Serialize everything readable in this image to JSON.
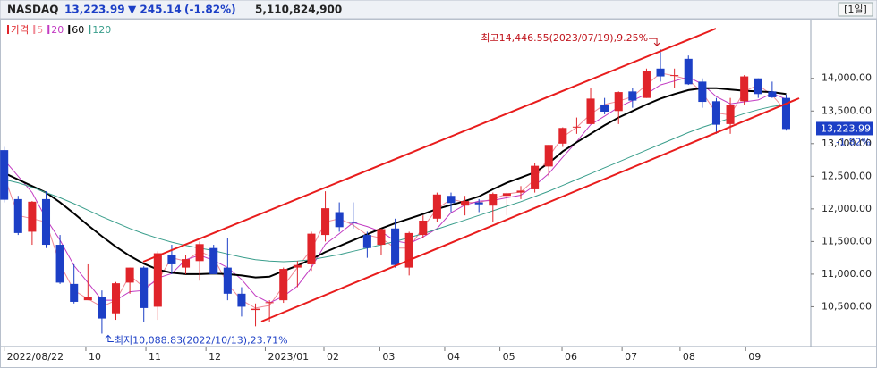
{
  "header": {
    "symbol": "NASDAQ",
    "price": "13,223.99",
    "change": "▼ 245.14",
    "change_pct": "(-1.82%)",
    "volume": "5,110,824,900",
    "period": "[1일]"
  },
  "chart_data": {
    "type": "candlestick",
    "change_label": "-1.82%",
    "high_annotation": "최고14,446.55(2023/07/19),9.25%",
    "low_annotation": "최저10,088.83(2022/10/13),23.71%",
    "high_index": 47,
    "low_index": 7,
    "xlim": [
      -0.3,
      57.7
    ],
    "xticks": [
      {
        "value": 0,
        "label": "2022/08/22"
      },
      {
        "value": 5.85,
        "label": "10"
      },
      {
        "value": 10.15,
        "label": "11"
      },
      {
        "value": 14.45,
        "label": "12"
      },
      {
        "value": 18.7,
        "label": "2023/01"
      },
      {
        "value": 22.9,
        "label": "02"
      },
      {
        "value": 26.9,
        "label": "03"
      },
      {
        "value": 31.55,
        "label": "04"
      },
      {
        "value": 35.5,
        "label": "05"
      },
      {
        "value": 39.95,
        "label": "06"
      },
      {
        "value": 44.25,
        "label": "07"
      },
      {
        "value": 48.4,
        "label": "08"
      },
      {
        "value": 53.1,
        "label": "09"
      }
    ],
    "ylim": [
      9890,
      14900
    ],
    "yticks": [
      {
        "value": 10500,
        "label": "10,500.00"
      },
      {
        "value": 11000,
        "label": "11,000.00"
      },
      {
        "value": 11500,
        "label": "11,500.00"
      },
      {
        "value": 12000,
        "label": "12,000.00"
      },
      {
        "value": 12500,
        "label": "12,500.00"
      },
      {
        "value": 13000,
        "label": "13,000.00"
      },
      {
        "value": 13500,
        "label": "13,500.00"
      },
      {
        "value": 14000,
        "label": "14,000.00"
      }
    ],
    "grid": false,
    "series": [
      {
        "name": "가격",
        "type": "candlestick",
        "color_up": "#e0242a",
        "color_down": "#1c3fc6",
        "open": [
          12900,
          12150,
          11650,
          12150,
          11450,
          10850,
          10600,
          10650,
          10400,
          10870,
          11100,
          10500,
          11300,
          11100,
          11200,
          11400,
          11100,
          10700,
          10450,
          10560,
          10600,
          11100,
          11150,
          11600,
          11950,
          11800,
          11600,
          11450,
          11700,
          11100,
          11600,
          11850,
          12200,
          12050,
          12100,
          12050,
          12200,
          12250,
          12300,
          12650,
          13000,
          13250,
          13300,
          13600,
          13500,
          13800,
          13700,
          14150,
          14050,
          14300,
          13950,
          13650,
          13300,
          13650,
          14000,
          13800,
          13700
        ],
        "high": [
          12950,
          12200,
          12120,
          12270,
          11600,
          11150,
          11150,
          10750,
          10880,
          11100,
          11120,
          11350,
          11450,
          11300,
          11500,
          11450,
          11550,
          10800,
          10550,
          10600,
          11100,
          11200,
          11650,
          12270,
          12100,
          12100,
          11650,
          11700,
          11850,
          11650,
          11900,
          12250,
          12250,
          12200,
          12150,
          12250,
          12250,
          12350,
          12700,
          12980,
          13250,
          13400,
          13850,
          13700,
          13800,
          13850,
          14150,
          14446.55,
          14150,
          14350,
          14000,
          13700,
          13700,
          14050,
          14000,
          13950,
          13750
        ],
        "low": [
          12100,
          11600,
          11450,
          11400,
          10850,
          10550,
          10600,
          10088.83,
          10300,
          10700,
          10260,
          10300,
          11000,
          11000,
          10900,
          11000,
          10600,
          10350,
          10200,
          10260,
          10560,
          10800,
          11050,
          11500,
          11650,
          11700,
          11250,
          11300,
          11100,
          10980,
          11550,
          11800,
          11950,
          11900,
          11950,
          11800,
          11900,
          12150,
          12250,
          12500,
          12950,
          13150,
          13300,
          13450,
          13300,
          13550,
          13700,
          13950,
          13850,
          13900,
          13550,
          13150,
          13150,
          13600,
          13700,
          13700,
          13200
        ],
        "close": [
          12140,
          11630,
          12110,
          11450,
          10870,
          10575,
          10650,
          10320,
          10860,
          11100,
          10480,
          11320,
          11150,
          11230,
          11460,
          11000,
          10700,
          10500,
          10470,
          10570,
          11080,
          11140,
          11620,
          12010,
          11720,
          11790,
          11400,
          11690,
          11140,
          11630,
          11820,
          12220,
          12090,
          12120,
          12070,
          12230,
          12240,
          12280,
          12660,
          12980,
          13240,
          13260,
          13690,
          13490,
          13790,
          13660,
          14110,
          14030,
          14050,
          13910,
          13640,
          13290,
          13590,
          14030,
          13760,
          13710,
          13223.99
        ]
      },
      {
        "name": "5",
        "type": "line",
        "color": "#f08a96",
        "values": [
          12500,
          11900,
          11850,
          11800,
          11150,
          10750,
          10620,
          10500,
          10600,
          10980,
          10800,
          10900,
          11250,
          11200,
          11350,
          11250,
          10850,
          10600,
          10480,
          10520,
          10820,
          11100,
          11380,
          11800,
          11850,
          11750,
          11600,
          11550,
          11400,
          11400,
          11720,
          12000,
          12150,
          12100,
          12100,
          12150,
          12230,
          12260,
          12450,
          12800,
          13100,
          13250,
          13450,
          13600,
          13650,
          13720,
          13900,
          14080,
          14040,
          13980,
          13780,
          13470,
          13440,
          13800,
          13900,
          13740,
          13500
        ]
      },
      {
        "name": "20",
        "type": "line",
        "color": "#c23bc2",
        "values": [
          12750,
          12500,
          12250,
          11850,
          11520,
          11130,
          10870,
          10600,
          10600,
          10730,
          10750,
          10940,
          11010,
          11220,
          11290,
          11210,
          11100,
          10920,
          10670,
          10560,
          10660,
          10820,
          11100,
          11460,
          11620,
          11790,
          11730,
          11650,
          11510,
          11470,
          11570,
          11700,
          11940,
          12060,
          12120,
          12130,
          12170,
          12210,
          12360,
          12540,
          12790,
          13030,
          13290,
          13420,
          13560,
          13660,
          13760,
          13900,
          13960,
          14020,
          13910,
          13720,
          13610,
          13640,
          13670,
          13770,
          13680
        ]
      },
      {
        "name": "60",
        "type": "line",
        "color": "#000000",
        "values": [
          12550,
          12450,
          12350,
          12250,
          12100,
          11930,
          11750,
          11580,
          11420,
          11280,
          11160,
          11070,
          11020,
          11000,
          11000,
          11010,
          11000,
          10980,
          10950,
          10960,
          11050,
          11130,
          11230,
          11340,
          11430,
          11520,
          11610,
          11700,
          11780,
          11850,
          11920,
          12000,
          12060,
          12120,
          12190,
          12300,
          12400,
          12480,
          12560,
          12700,
          12880,
          13020,
          13150,
          13280,
          13400,
          13500,
          13600,
          13690,
          13760,
          13820,
          13850,
          13850,
          13830,
          13810,
          13800,
          13790,
          13760
        ]
      },
      {
        "name": "120",
        "type": "line",
        "color": "#3a9e8c",
        "values": [
          12450,
          12400,
          12330,
          12250,
          12170,
          12080,
          11980,
          11880,
          11790,
          11700,
          11620,
          11550,
          11490,
          11440,
          11400,
          11360,
          11310,
          11260,
          11220,
          11200,
          11190,
          11200,
          11220,
          11260,
          11300,
          11350,
          11400,
          11450,
          11500,
          11560,
          11620,
          11690,
          11760,
          11830,
          11900,
          11970,
          12040,
          12110,
          12190,
          12270,
          12360,
          12450,
          12540,
          12630,
          12720,
          12810,
          12900,
          12990,
          13080,
          13170,
          13250,
          13320,
          13390,
          13460,
          13520,
          13570,
          13600
        ]
      }
    ]
  }
}
